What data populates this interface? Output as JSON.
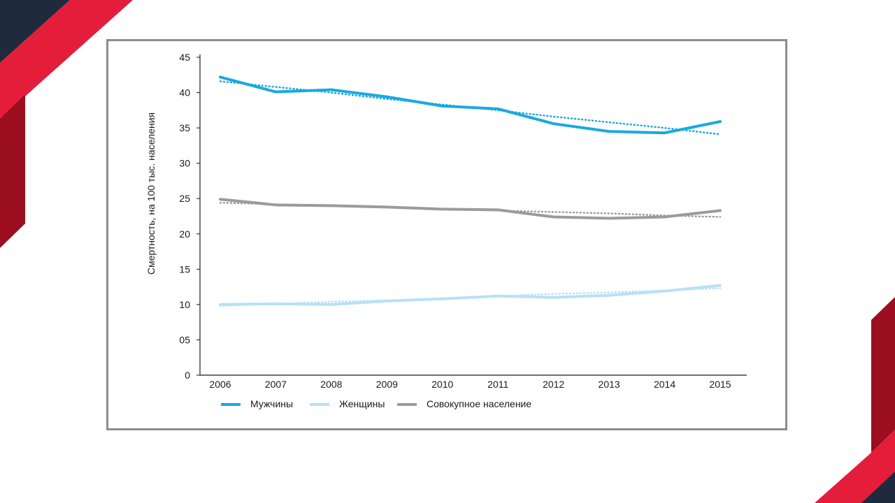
{
  "colors": {
    "navy": "#1f2a3c",
    "red": "#e41d3a",
    "dark_red": "#9b0e1f",
    "frame": "#8c8c8c"
  },
  "chart_data": {
    "type": "line",
    "title": "",
    "ylabel": "Смертность, на 100 тыс. населения",
    "xlabel": "",
    "x": [
      "2006",
      "2007",
      "2008",
      "2009",
      "2010",
      "2011",
      "2012",
      "2013",
      "2014",
      "2015"
    ],
    "ylim": [
      0,
      45
    ],
    "yticks": [
      0,
      5,
      10,
      15,
      20,
      25,
      30,
      35,
      40,
      45
    ],
    "ytick_labels": [
      "0",
      "05",
      "10",
      "15",
      "20",
      "25",
      "30",
      "35",
      "40",
      "45"
    ],
    "grid": false,
    "legend_position": "bottom-left",
    "series": [
      {
        "name": "Мужчины",
        "color": "#19a9e1",
        "values": [
          42.2,
          40.1,
          40.4,
          39.4,
          38.1,
          37.7,
          35.6,
          34.5,
          34.3,
          35.9
        ],
        "trend": [
          41.6,
          40.8,
          40.0,
          39.1,
          38.3,
          37.5,
          36.6,
          35.8,
          35.0,
          34.1
        ]
      },
      {
        "name": "Женщины",
        "color": "#b7e1f6",
        "values": [
          10.0,
          10.1,
          10.0,
          10.5,
          10.8,
          11.2,
          11.0,
          11.3,
          11.9,
          12.7
        ],
        "trend": [
          9.8,
          10.1,
          10.4,
          10.6,
          10.9,
          11.2,
          11.5,
          11.7,
          12.0,
          12.3
        ]
      },
      {
        "name": "Совокупное население",
        "color": "#9b9b9b",
        "values": [
          24.9,
          24.1,
          24.0,
          23.8,
          23.5,
          23.4,
          22.4,
          22.2,
          22.4,
          23.3
        ],
        "trend": [
          24.4,
          24.2,
          24.0,
          23.8,
          23.5,
          23.3,
          23.1,
          22.9,
          22.6,
          22.4
        ]
      }
    ]
  }
}
